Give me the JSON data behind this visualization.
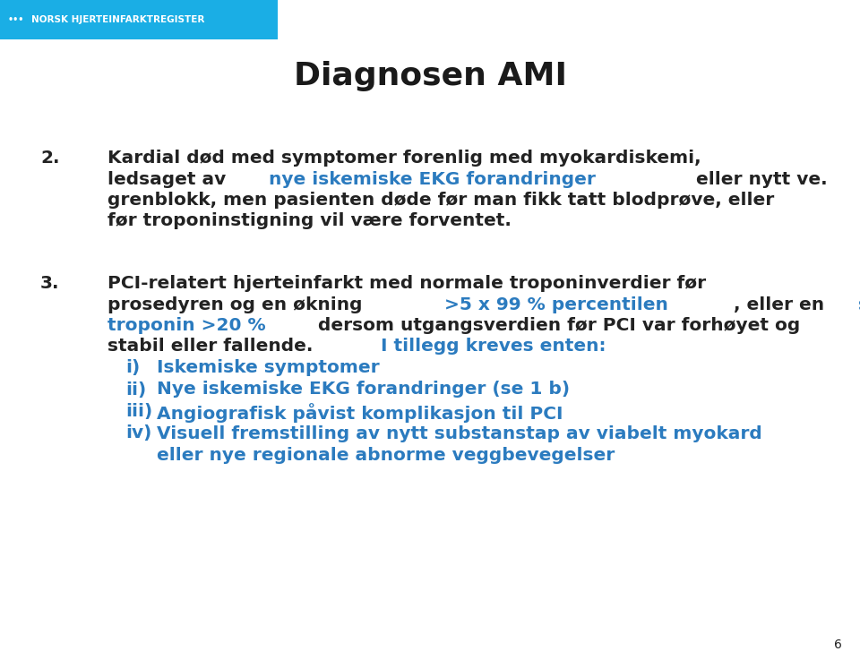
{
  "title": "Diagnosen AMI",
  "header_bg_color": "#1aaee5",
  "header_text": "NORSK HJERTEINFARKTREGISTER",
  "header_text_color": "#ffffff",
  "title_color": "#1a1a1a",
  "title_fontsize": 26,
  "black": "#222222",
  "blue": "#2b7bbf",
  "page_number": "6",
  "bg_color": "#ffffff",
  "body_fontsize": 14.5
}
